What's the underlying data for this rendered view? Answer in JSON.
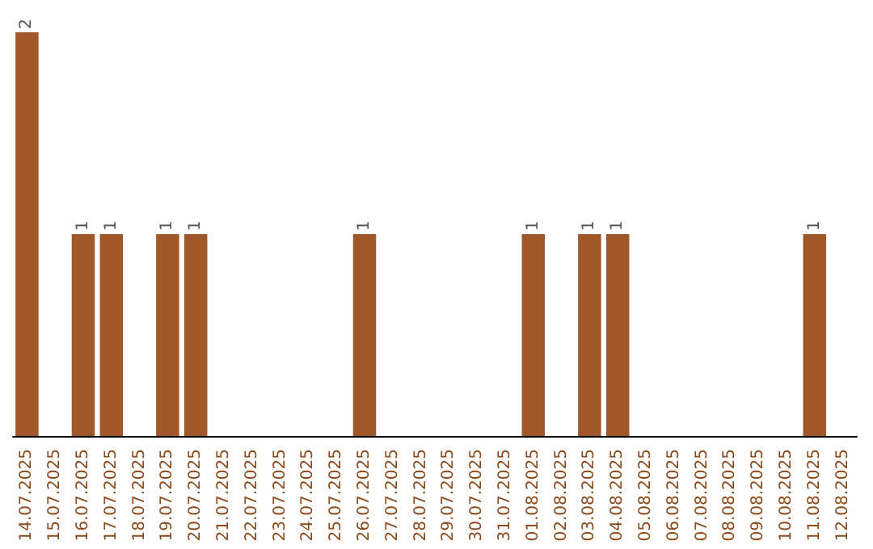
{
  "chart_data": {
    "type": "bar",
    "categories": [
      "14.07.2025",
      "15.07.2025",
      "16.07.2025",
      "17.07.2025",
      "18.07.2025",
      "19.07.2025",
      "20.07.2025",
      "21.07.2025",
      "22.07.2025",
      "23.07.2025",
      "24.07.2025",
      "25.07.2025",
      "26.07.2025",
      "27.07.2025",
      "28.07.2025",
      "29.07.2025",
      "30.07.2025",
      "31.07.2025",
      "01.08.2025",
      "02.08.2025",
      "03.08.2025",
      "04.08.2025",
      "05.08.2025",
      "06.08.2025",
      "07.08.2025",
      "08.08.2025",
      "09.08.2025",
      "10.08.2025",
      "11.08.2025",
      "12.08.2025"
    ],
    "values": [
      2,
      0,
      1,
      1,
      0,
      1,
      1,
      0,
      0,
      0,
      0,
      0,
      1,
      0,
      0,
      0,
      0,
      0,
      1,
      0,
      1,
      1,
      0,
      0,
      0,
      0,
      0,
      0,
      1,
      0
    ],
    "value_labels": [
      "2",
      null,
      "1",
      "1",
      null,
      "1",
      "1",
      null,
      null,
      null,
      null,
      null,
      "1",
      null,
      null,
      null,
      null,
      null,
      "1",
      null,
      "1",
      "1",
      null,
      null,
      null,
      null,
      null,
      null,
      "1",
      null
    ],
    "color": "#a0572a",
    "tick_labels": "x",
    "grid": false
  }
}
